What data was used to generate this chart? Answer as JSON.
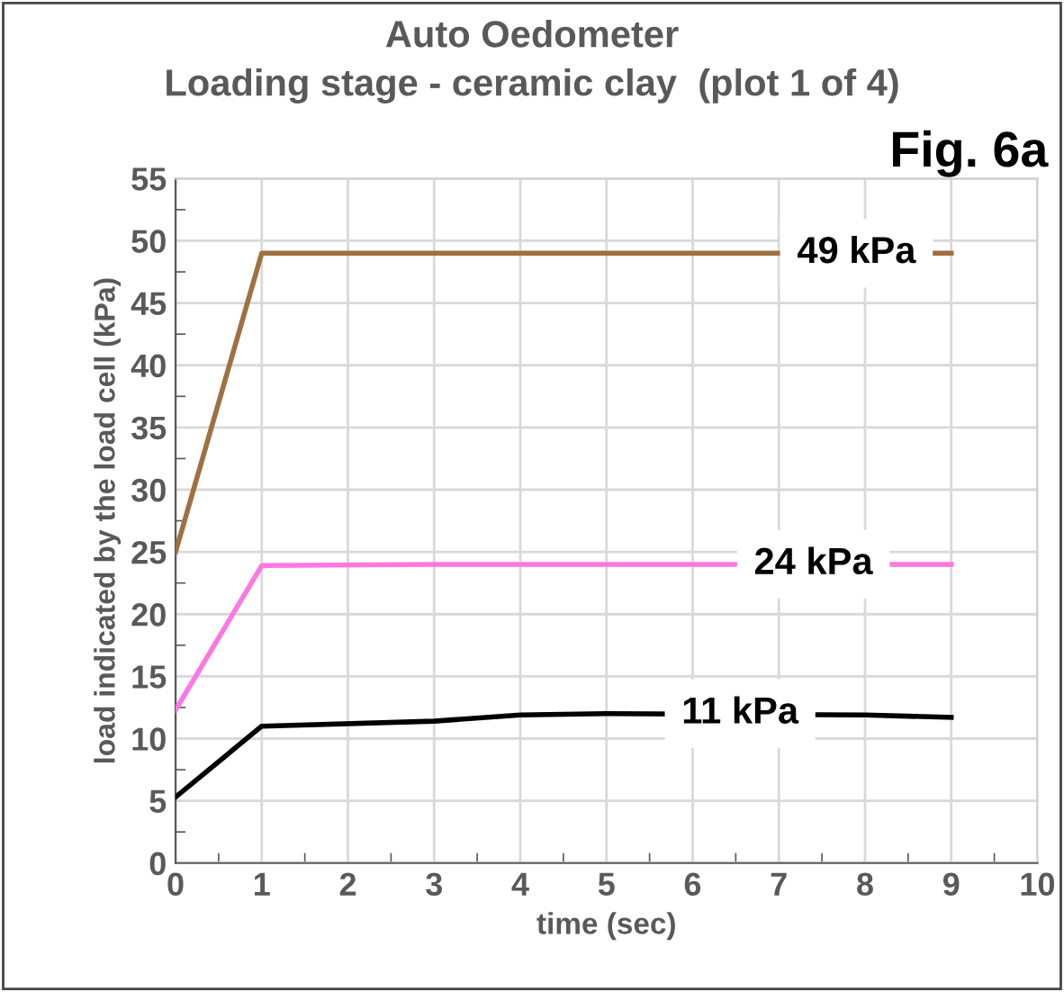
{
  "chart_data": {
    "type": "line",
    "title": "Auto Oedometer\nLoading stage - ceramic clay  (plot 1 of 4)",
    "xlabel": "time (sec)",
    "ylabel": "load indicated by the load cell (kPa)",
    "series": [
      {
        "color": "#a0703f",
        "x": [
          0,
          1,
          9
        ],
        "values": [
          25,
          49,
          49
        ]
      },
      {
        "color": "#ff77e0",
        "x": [
          0,
          1,
          3,
          9
        ],
        "values": [
          12.3,
          23.9,
          24.0,
          24.0
        ]
      },
      {
        "color": "#000000",
        "x": [
          0,
          1,
          3,
          4,
          5,
          8,
          9
        ],
        "values": [
          5.3,
          11.0,
          11.4,
          11.9,
          12.0,
          11.9,
          11.7
        ]
      }
    ],
    "annotations": [
      {
        "text": "49 kPa",
        "x": 7.9,
        "y": 49
      },
      {
        "text": "24 kPa",
        "x": 7.4,
        "y": 24
      },
      {
        "text": "11 kPa",
        "x": 6.55,
        "y": 12
      },
      "Fig. 6a"
    ],
    "xlim": [
      0,
      10
    ],
    "xticks": [
      0,
      1,
      2,
      3,
      4,
      5,
      6,
      7,
      8,
      9,
      10
    ],
    "ylim": [
      0,
      55
    ],
    "yticks": [
      0,
      5,
      10,
      15,
      20,
      25,
      30,
      35,
      40,
      45,
      50,
      55
    ],
    "grid": true,
    "legend": false,
    "marker": "none",
    "line_style": "solid"
  }
}
